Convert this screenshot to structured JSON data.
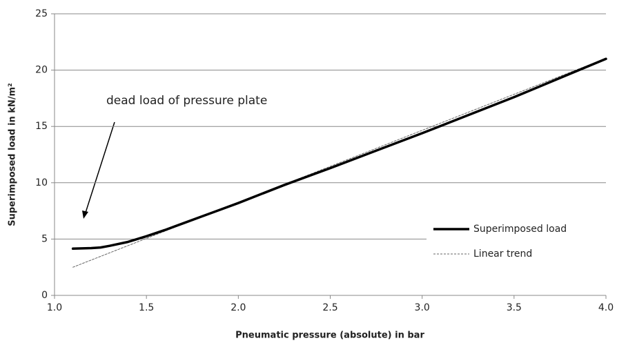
{
  "chart_data": {
    "type": "line",
    "x_label": "Pneumatic pressure (absolute) in bar",
    "y_label": "Superimposed load in kN/m²",
    "annotation": "dead load of pressure plate",
    "xlim": [
      1.0,
      4.0
    ],
    "xticks": [
      {
        "value": 1.0,
        "label": "1.0"
      },
      {
        "value": 1.5,
        "label": "1.5"
      },
      {
        "value": 2.0,
        "label": "2.0"
      },
      {
        "value": 2.5,
        "label": "2.5"
      },
      {
        "value": 3.0,
        "label": "3.0"
      },
      {
        "value": 3.5,
        "label": "3.5"
      },
      {
        "value": 4.0,
        "label": "4.0"
      }
    ],
    "ylim": [
      0,
      25
    ],
    "yticks": [
      0,
      5,
      10,
      15,
      20,
      25
    ],
    "grid": true,
    "legend": "lower right",
    "series": [
      {
        "name": "Superimposed load",
        "color": "#000000",
        "x": [
          1.1,
          1.2,
          1.25,
          1.3,
          1.4,
          1.5,
          1.6,
          1.7,
          1.8,
          1.9,
          2.0,
          2.25,
          2.5,
          2.75,
          3.0,
          3.25,
          3.5,
          3.75,
          4.0
        ],
        "values": [
          4.15,
          4.2,
          4.25,
          4.4,
          4.75,
          5.25,
          5.8,
          6.4,
          7.0,
          7.6,
          8.2,
          9.8,
          11.3,
          12.85,
          14.4,
          16.0,
          17.6,
          19.3,
          21.0
        ]
      },
      {
        "name": "Linear trend",
        "color": "#666666",
        "dashed": true,
        "x": [
          1.1,
          4.0
        ],
        "values": [
          2.5,
          21.05
        ]
      }
    ]
  }
}
